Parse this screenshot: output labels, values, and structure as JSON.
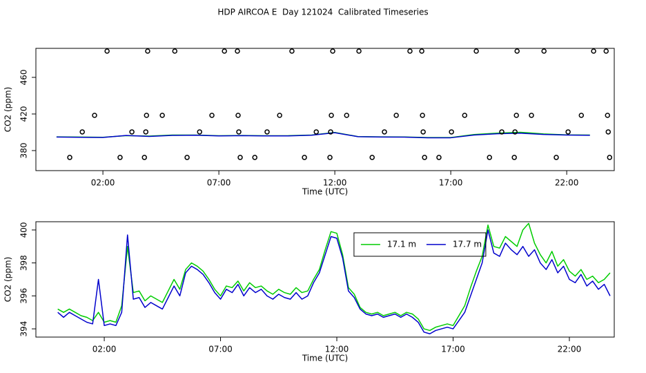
{
  "title": "HDP AIRCOA E  Day 121024  Calibrated Timeseries",
  "chart_data": [
    {
      "type": "line",
      "xlabel": "Time (UTC)",
      "ylabel": "CO2 (ppm)",
      "xlim": [
        -0.89,
        24.05
      ],
      "ylim": [
        358.1,
        491.7
      ],
      "xticks": [
        {
          "value": 2,
          "label": "02:00"
        },
        {
          "value": 7,
          "label": "07:00"
        },
        {
          "value": 12,
          "label": "12:00"
        },
        {
          "value": 17,
          "label": "17:00"
        },
        {
          "value": 22,
          "label": "22:00"
        }
      ],
      "yticks": [
        380,
        420,
        460
      ],
      "x": [
        0,
        1,
        2,
        3,
        4,
        5,
        6,
        7,
        8,
        9,
        10,
        11,
        12,
        13,
        14,
        15,
        16,
        17,
        18,
        19,
        20,
        21,
        22,
        23
      ],
      "series": [
        {
          "color": "#00cc00",
          "values": [
            395.0,
            394.8,
            394.5,
            396.3,
            395.8,
            397.0,
            397.0,
            396.2,
            396.5,
            396.2,
            396.3,
            397.0,
            399.8,
            395.3,
            395.0,
            394.9,
            394.2,
            394.2,
            397.5,
            399.0,
            400.0,
            398.2,
            397.2,
            397.0
          ]
        },
        {
          "color": "#0000cc",
          "values": [
            394.8,
            394.5,
            394.3,
            396.5,
            395.5,
            396.6,
            396.8,
            396.0,
            396.3,
            396.0,
            396.0,
            396.8,
            399.5,
            395.2,
            394.8,
            394.7,
            394.0,
            394.0,
            397.0,
            398.4,
            399.0,
            397.6,
            397.0,
            396.7
          ]
        }
      ],
      "points": {
        "x": [
          2.18,
          3.93,
          5.1,
          7.24,
          7.8,
          10.15,
          11.91,
          13.04,
          15.24,
          15.75,
          18.1,
          19.86,
          21.02,
          23.16,
          23.7,
          0.57,
          2.74,
          3.79,
          5.63,
          7.92,
          8.55,
          10.69,
          11.79,
          13.61,
          15.87,
          16.49,
          18.67,
          19.74,
          21.55,
          23.85,
          1.64,
          3.88,
          4.56,
          6.7,
          7.83,
          9.62,
          11.85,
          12.51,
          14.65,
          15.78,
          17.6,
          19.83,
          20.48,
          22.63,
          23.76,
          1.11,
          3.25,
          3.85,
          6.17,
          7.86,
          9.08,
          11.2,
          11.82,
          14.14,
          15.81,
          17.03,
          19.2,
          19.77,
          22.06,
          23.79
        ],
        "y": [
          488.7,
          488.7,
          488.7,
          488.7,
          488.7,
          488.7,
          488.7,
          488.7,
          488.7,
          488.7,
          488.7,
          488.7,
          488.7,
          488.7,
          488.7,
          372.5,
          372.5,
          372.5,
          372.5,
          372.5,
          372.5,
          372.5,
          372.5,
          372.5,
          372.5,
          372.5,
          372.5,
          372.5,
          372.5,
          372.5,
          418.5,
          418.5,
          418.5,
          418.5,
          418.5,
          418.5,
          418.5,
          418.5,
          418.5,
          418.5,
          418.5,
          418.5,
          418.5,
          418.5,
          418.5,
          400.4,
          400.4,
          400.4,
          400.4,
          400.4,
          400.4,
          400.4,
          400.4,
          400.4,
          400.4,
          400.4,
          400.4,
          400.4,
          400.4,
          400.4
        ]
      }
    },
    {
      "type": "line",
      "xlabel": "Time (UTC)",
      "ylabel": "CO2 (ppm)",
      "legend": "top",
      "xlim": [
        -0.94,
        23.93
      ],
      "ylim": [
        393.5,
        400.5
      ],
      "xticks": [
        {
          "value": 2,
          "label": "02:00"
        },
        {
          "value": 7,
          "label": "07:00"
        },
        {
          "value": 12,
          "label": "12:00"
        },
        {
          "value": 17,
          "label": "17:00"
        },
        {
          "value": 22,
          "label": "22:00"
        }
      ],
      "yticks": [
        394,
        396,
        398,
        400
      ],
      "x": [
        0,
        0.25,
        0.5,
        0.75,
        1,
        1.25,
        1.5,
        1.75,
        2,
        2.25,
        2.5,
        2.75,
        3,
        3.25,
        3.5,
        3.75,
        4,
        4.25,
        4.5,
        4.75,
        5,
        5.25,
        5.5,
        5.75,
        6,
        6.25,
        6.5,
        6.75,
        7,
        7.25,
        7.5,
        7.75,
        8,
        8.25,
        8.5,
        8.75,
        9,
        9.25,
        9.5,
        9.75,
        10,
        10.25,
        10.5,
        10.75,
        11,
        11.25,
        11.5,
        11.75,
        12,
        12.25,
        12.5,
        12.75,
        13,
        13.25,
        13.5,
        13.75,
        14,
        14.25,
        14.5,
        14.75,
        15,
        15.25,
        15.5,
        15.75,
        16,
        16.25,
        16.5,
        16.75,
        17,
        17.25,
        17.5,
        17.75,
        18,
        18.25,
        18.5,
        18.75,
        19,
        19.25,
        19.5,
        19.75,
        20,
        20.25,
        20.5,
        20.75,
        21,
        21.25,
        21.5,
        21.75,
        22,
        22.25,
        22.5,
        22.75,
        23,
        23.25,
        23.5,
        23.75
      ],
      "series": [
        {
          "name": "17.1 m",
          "color": "#00cc00",
          "values": [
            395.2,
            395.0,
            395.2,
            395.0,
            394.8,
            394.7,
            394.5,
            395.0,
            394.4,
            394.5,
            394.4,
            395.4,
            399.0,
            396.2,
            396.3,
            395.7,
            396.0,
            395.8,
            395.6,
            396.3,
            397.0,
            396.4,
            397.6,
            398.0,
            397.8,
            397.5,
            397.0,
            396.4,
            396.0,
            396.6,
            396.5,
            396.9,
            396.3,
            396.8,
            396.5,
            396.6,
            396.3,
            396.1,
            396.4,
            396.2,
            396.1,
            396.5,
            396.2,
            396.3,
            397.0,
            397.6,
            398.8,
            399.9,
            399.8,
            398.5,
            396.5,
            396.1,
            395.3,
            395.0,
            394.9,
            395.0,
            394.8,
            394.9,
            395.0,
            394.8,
            395.0,
            394.9,
            394.6,
            394.0,
            393.9,
            394.1,
            394.2,
            394.3,
            394.2,
            394.8,
            395.4,
            396.5,
            397.5,
            398.4,
            400.3,
            399.0,
            398.9,
            399.6,
            399.3,
            399.0,
            400.0,
            400.4,
            399.2,
            398.5,
            398.0,
            398.7,
            397.8,
            398.2,
            397.5,
            397.2,
            397.6,
            397.0,
            397.2,
            396.8,
            397.0,
            397.4
          ]
        },
        {
          "name": "17.7 m",
          "color": "#0000cc",
          "values": [
            395.0,
            394.7,
            395.0,
            394.8,
            394.6,
            394.4,
            394.3,
            397.0,
            394.2,
            394.3,
            394.2,
            395.0,
            399.7,
            395.8,
            395.9,
            395.3,
            395.6,
            395.4,
            395.2,
            395.9,
            396.6,
            396.0,
            397.4,
            397.8,
            397.6,
            397.3,
            396.8,
            396.2,
            395.8,
            396.4,
            396.2,
            396.7,
            396.0,
            396.5,
            396.2,
            396.4,
            396.0,
            395.8,
            396.1,
            395.9,
            395.8,
            396.2,
            395.8,
            396.0,
            396.8,
            397.4,
            398.5,
            399.6,
            399.5,
            398.3,
            396.3,
            395.9,
            395.2,
            394.9,
            394.8,
            394.9,
            394.7,
            394.8,
            394.9,
            394.7,
            394.9,
            394.7,
            394.4,
            393.8,
            393.7,
            393.9,
            394.0,
            394.1,
            394.0,
            394.5,
            395.0,
            396.0,
            397.0,
            398.0,
            400.0,
            398.6,
            398.4,
            399.2,
            398.8,
            398.5,
            399.0,
            398.4,
            398.8,
            398.0,
            397.6,
            398.2,
            397.4,
            397.8,
            397.0,
            396.8,
            397.3,
            396.6,
            396.9,
            396.4,
            396.7,
            396.0
          ]
        }
      ]
    }
  ]
}
